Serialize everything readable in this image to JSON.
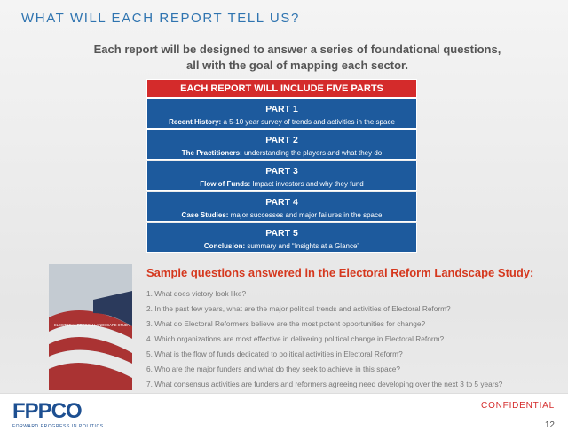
{
  "header": {
    "title": "WHAT WILL EACH REPORT TELL US?",
    "intro": [
      "Each report will be designed to answer a series of foundational questions,",
      "all with the goal of mapping each sector."
    ]
  },
  "banner": "EACH REPORT WILL INCLUDE FIVE PARTS",
  "parts": [
    {
      "title": "PART 1",
      "label": "Recent History:",
      "text": "a 5-10 year survey of trends and activities in the space"
    },
    {
      "title": "PART 2",
      "label": "The Practitioners:",
      "text": "understanding the players and what they do"
    },
    {
      "title": "PART 3",
      "label": "Flow of Funds:",
      "text": "Impact investors and why they fund"
    },
    {
      "title": "PART 4",
      "label": "Case Studies:",
      "text": "major successes and major failures in the space"
    },
    {
      "title": "PART 5",
      "label": "Conclusion:",
      "text": "summary and “Insights at a Glance”"
    }
  ],
  "cover": {
    "label": "ELECTORAL REFORM LANDSCAPE STUDY"
  },
  "questions": {
    "heading": "Sample questions answered in the ",
    "study": "Electoral Reform Landscape Study",
    "colon": ":",
    "items": [
      "1. What does victory look like?",
      "2. In the past few years, what are the major political trends and activities of Electoral Reform?",
      "3. What do Electoral Reformers believe are the most potent opportunities for change?",
      "4. Which organizations are most effective in delivering political change in Electoral Reform?",
      "5. What is the flow of funds dedicated to political activities in Electoral Reform?",
      "6. Who are the major funders and what do they seek to achieve in this space?",
      "7. What consensus activities are funders and reformers agreeing need developing over the next 3 to 5 years?"
    ]
  },
  "footer": {
    "logo": "FPPCO",
    "tagline": "FORWARD PROGRESS IN POLITICS",
    "confidential": "CONFIDENTIAL",
    "page": "12"
  }
}
